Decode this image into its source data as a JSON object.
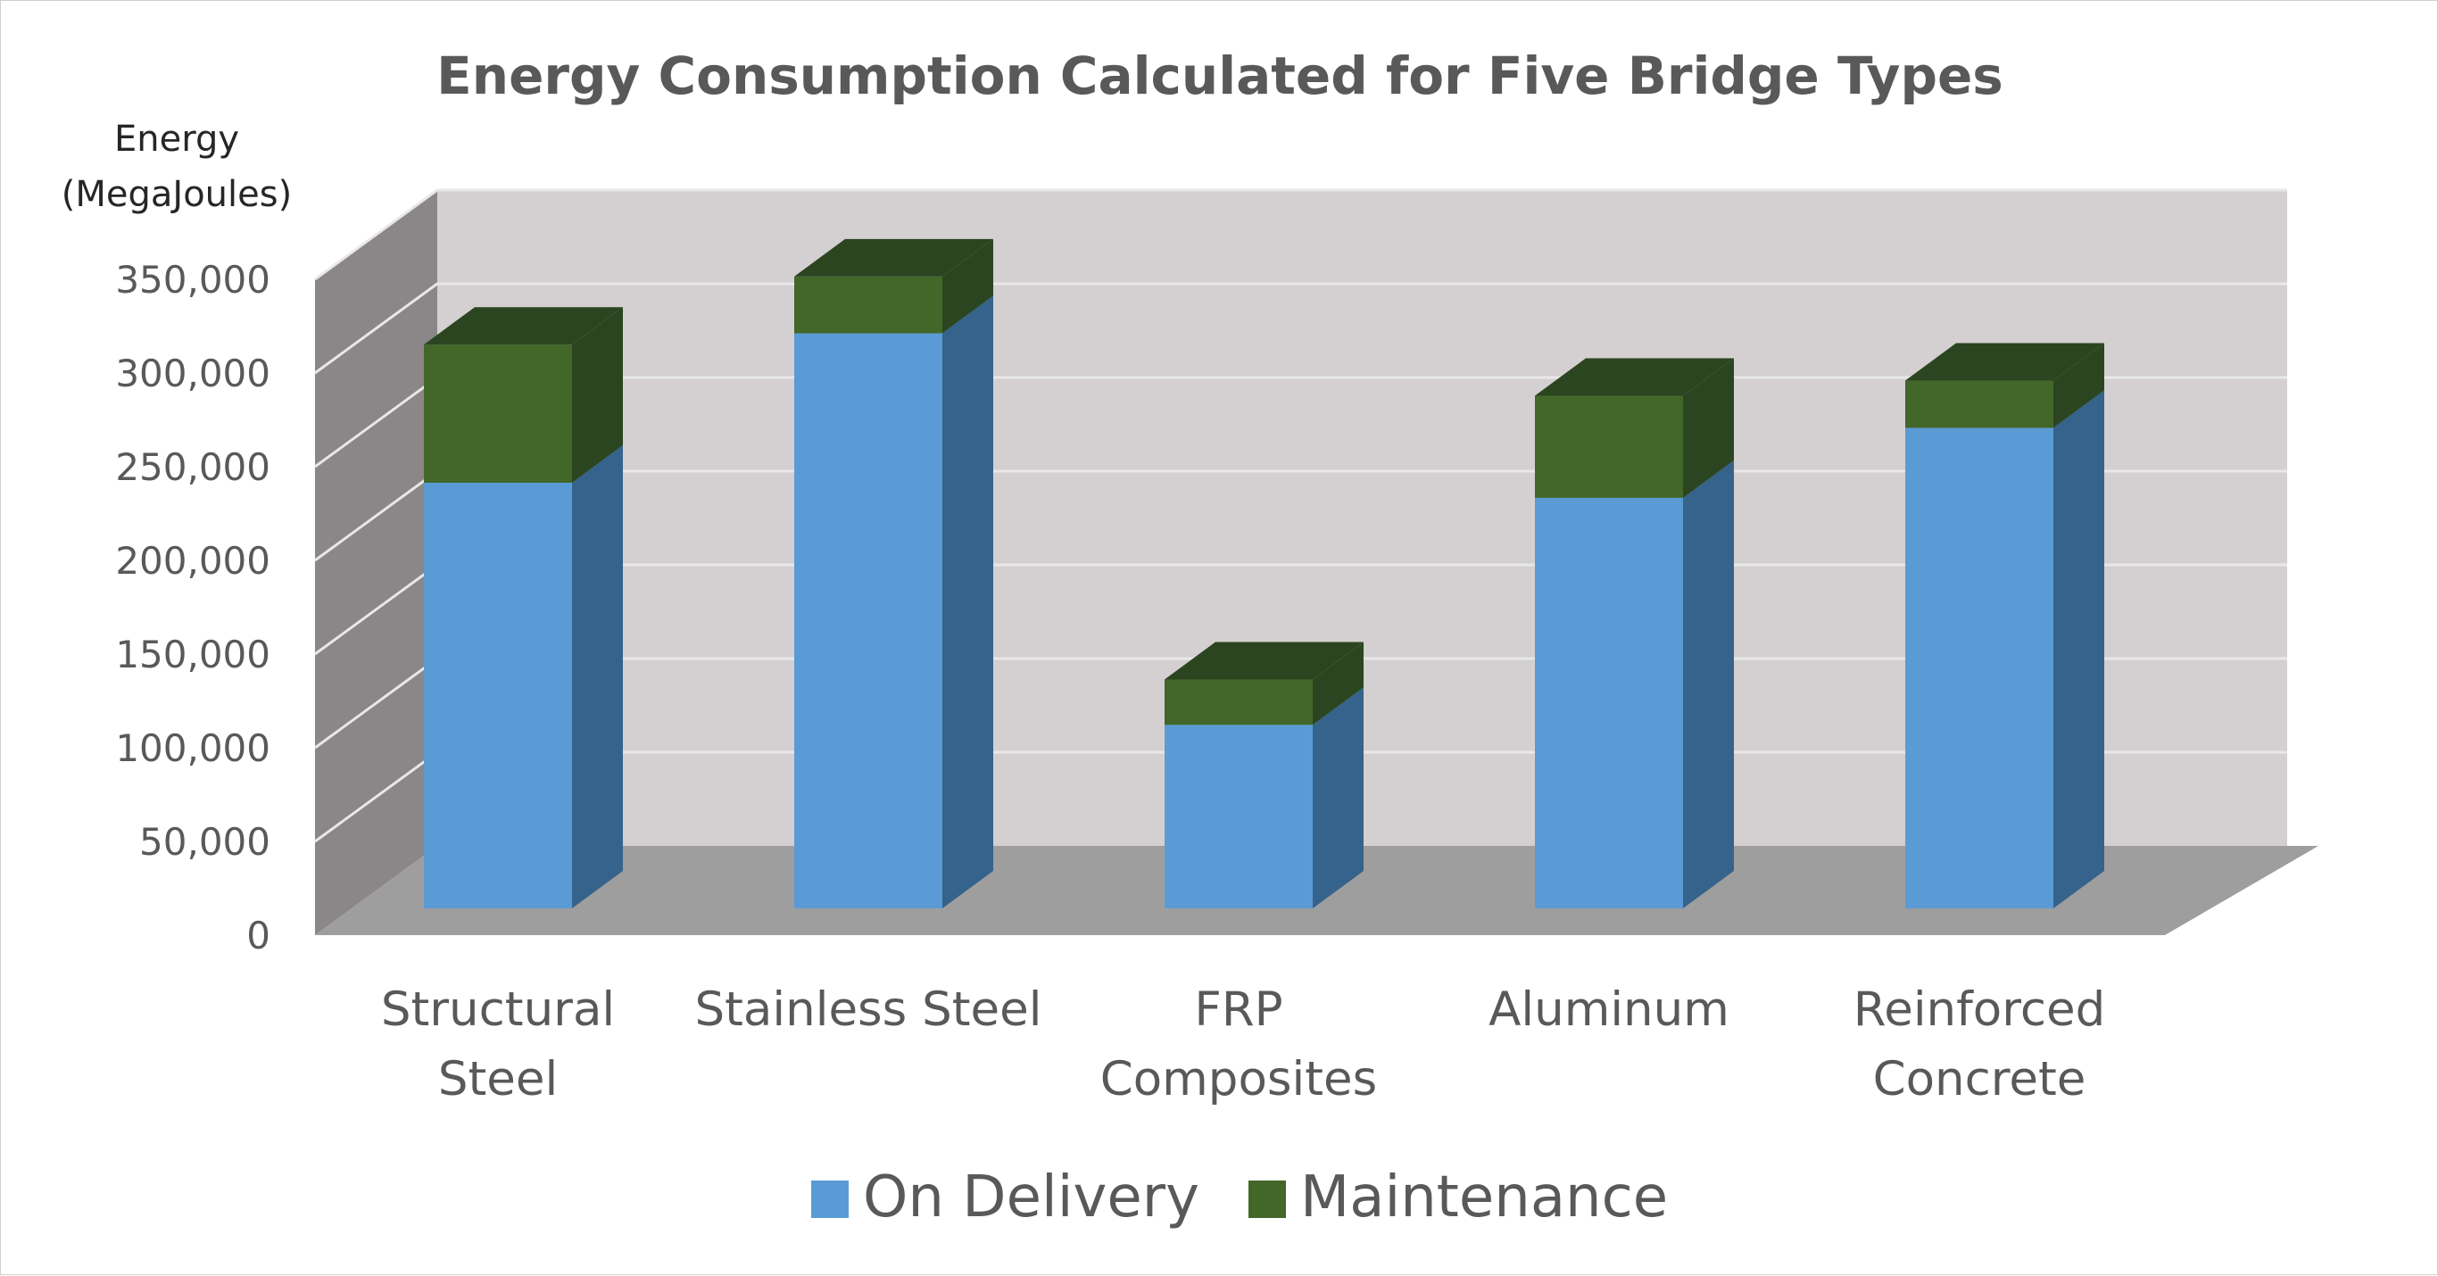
{
  "chart_data": {
    "type": "bar",
    "stacked": true,
    "three_d": true,
    "title": "Energy Consumption Calculated for Five Bridge Types",
    "ylabel_lines": [
      "Energy",
      "(MegaJoules)"
    ],
    "xlabel": "",
    "categories": [
      [
        "Structural",
        "Steel"
      ],
      [
        "Stainless Steel"
      ],
      [
        "FRP",
        "Composites"
      ],
      [
        "Aluminum"
      ],
      [
        "Reinforced",
        "Concrete"
      ]
    ],
    "series": [
      {
        "name": "On Delivery",
        "values": [
          225000,
          304000,
          97000,
          217000,
          254000
        ]
      },
      {
        "name": "Maintenance",
        "values": [
          73000,
          30000,
          24000,
          54000,
          25000
        ]
      }
    ],
    "ylim": [
      0,
      350000
    ],
    "yticks": [
      "0",
      "50,000",
      "100,000",
      "150,000",
      "200,000",
      "250,000",
      "300,000",
      "350,000"
    ],
    "grid": true,
    "legend_position": "bottom",
    "colors": {
      "on_delivery_front": "#5b9bd5",
      "on_delivery_side": "#36638b",
      "maintenance_front": "#426729",
      "maintenance_side": "#2b4520",
      "back_wall": "#d4d0d1",
      "side_wall": "#8b8687",
      "floor": "#9e9e9e"
    }
  }
}
